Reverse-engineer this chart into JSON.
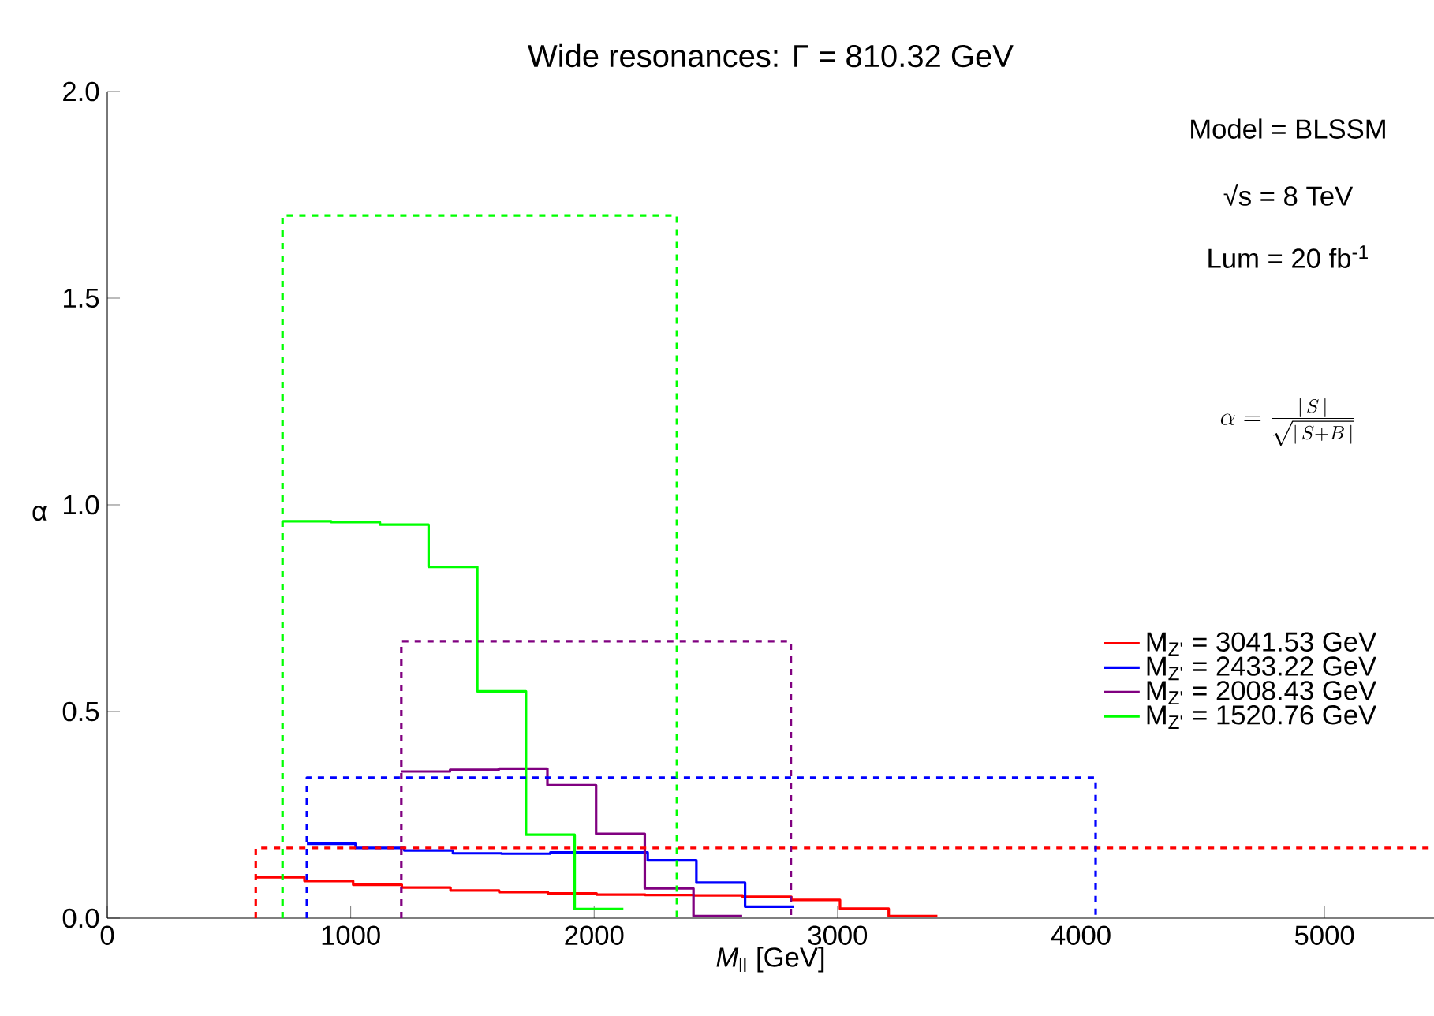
{
  "chart_data": {
    "type": "histogram",
    "title": "Wide resonances: Γ = 810.32 GeV",
    "xlabel": "*M*$_{ll}$ [GeV]",
    "ylabel": "α",
    "xlim": [
      0,
      5450
    ],
    "ylim": [
      0,
      2
    ],
    "xticks": [
      0,
      1000,
      2000,
      3000,
      4000,
      5000
    ],
    "yticks": [
      {
        "value": 0,
        "label": "0.0"
      },
      {
        "value": 0.5,
        "label": "0.5"
      },
      {
        "value": 1,
        "label": "1.0"
      },
      {
        "value": 1.5,
        "label": "1.5"
      },
      {
        "value": 2,
        "label": "2.0"
      }
    ],
    "legend": "right",
    "annotations": [
      "Model = BLSSM",
      "√s = 8 TeV",
      "Lum = 20 fb$^{-1}$",
      "\\alpha = \\frac{|\\,S\\,|}{\\sqrt{|\\,S + B\\,|}}"
    ],
    "series": [
      {
        "name": "M$_{Z'}$ = 3041.53 GeV",
        "color": "#ff0000",
        "bins": [
          610,
          810,
          1010,
          1210,
          1410,
          1610,
          1810,
          2010,
          2210,
          2410,
          2610,
          2810,
          3010,
          3210,
          3410
        ],
        "values": [
          0.099,
          0.09,
          0.081,
          0.074,
          0.067,
          0.063,
          0.06,
          0.057,
          0.056,
          0.055,
          0.052,
          0.044,
          0.023,
          0.005
        ]
      },
      {
        "name": "M$_{Z'}$ = 2433.22 GeV",
        "color": "#0000ff",
        "bins": [
          820,
          1020,
          1220,
          1420,
          1620,
          1820,
          2020,
          2220,
          2420,
          2620,
          2820
        ],
        "values": [
          0.18,
          0.17,
          0.164,
          0.157,
          0.156,
          0.159,
          0.159,
          0.14,
          0.086,
          0.028
        ]
      },
      {
        "name": "M$_{Z'}$ = 2008.43 GeV",
        "color": "#800080",
        "bins": [
          1208,
          1408,
          1608,
          1808,
          2008,
          2208,
          2408,
          2608
        ],
        "values": [
          0.355,
          0.359,
          0.362,
          0.322,
          0.204,
          0.072,
          0.005
        ]
      },
      {
        "name": "M$_{Z'}$ = 1520.76 GeV",
        "color": "#00ff00",
        "bins": [
          720,
          920,
          1120,
          1320,
          1520,
          1720,
          1920,
          2120
        ],
        "values": [
          0.96,
          0.958,
          0.952,
          0.85,
          0.549,
          0.202,
          0.022
        ]
      },
      {
        "type": "line",
        "line_style": "dashed",
        "color": "#ff0000",
        "x": [
          610,
          610,
          5450
        ],
        "values": [
          0,
          0.17,
          0.17
        ]
      },
      {
        "type": "line",
        "line_style": "dashed",
        "color": "#0000ff",
        "x": [
          820,
          820,
          4060,
          4060
        ],
        "values": [
          0,
          0.34,
          0.34,
          0
        ]
      },
      {
        "type": "line",
        "line_style": "dashed",
        "color": "#800080",
        "x": [
          1208,
          1208,
          2808,
          2808
        ],
        "values": [
          0,
          0.67,
          0.67,
          0
        ]
      },
      {
        "type": "line",
        "line_style": "dashed",
        "color": "#00ff00",
        "x": [
          720,
          720,
          2340,
          2340
        ],
        "values": [
          0,
          1.7,
          1.7,
          0
        ]
      }
    ]
  }
}
